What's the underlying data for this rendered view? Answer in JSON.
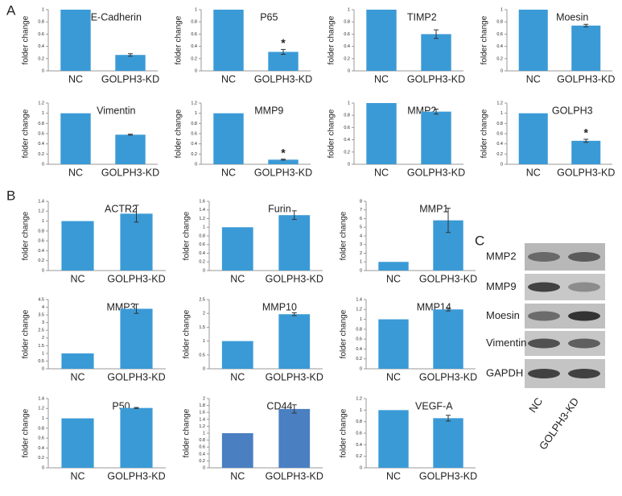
{
  "panel_labels": [
    "A",
    "B",
    "C"
  ],
  "chart_data": [
    {
      "type": "bar",
      "title": "E-Cadherin",
      "ylabel": "folder change",
      "categories": [
        "NC",
        "GOLPH3-KD"
      ],
      "values": [
        1,
        0.26
      ],
      "errors": [
        null,
        0.02
      ],
      "annotations": [
        null,
        null
      ],
      "color": "#3a9ad6",
      "ylim": [
        0,
        1
      ],
      "yticks": [
        0,
        0.2,
        0.4,
        0.6,
        0.8,
        1
      ]
    },
    {
      "type": "bar",
      "title": "P65",
      "ylabel": "folder change",
      "categories": [
        "NC",
        "GOLPH3-KD"
      ],
      "values": [
        1,
        0.31
      ],
      "errors": [
        null,
        0.04
      ],
      "annotations": [
        null,
        "*"
      ],
      "color": "#3a9ad6",
      "ylim": [
        0,
        1
      ],
      "yticks": [
        0,
        0.2,
        0.4,
        0.6,
        0.8,
        1
      ]
    },
    {
      "type": "bar",
      "title": "TIMP2",
      "ylabel": "folder change",
      "categories": [
        "NC",
        "GOLPH3-KD"
      ],
      "values": [
        1,
        0.6
      ],
      "errors": [
        null,
        0.07
      ],
      "annotations": [
        null,
        null
      ],
      "color": "#3a9ad6",
      "ylim": [
        0,
        1
      ],
      "yticks": [
        0,
        0.2,
        0.4,
        0.6,
        0.8,
        1
      ]
    },
    {
      "type": "bar",
      "title": "Moesin",
      "ylabel": "folder change",
      "categories": [
        "NC",
        "GOLPH3-KD"
      ],
      "values": [
        1,
        0.74
      ],
      "errors": [
        null,
        0.02
      ],
      "annotations": [
        null,
        null
      ],
      "color": "#3a9ad6",
      "ylim": [
        0,
        1
      ],
      "yticks": [
        0,
        0.2,
        0.4,
        0.6,
        0.8,
        1
      ]
    },
    {
      "type": "bar",
      "title": "Vimentin",
      "ylabel": "folder change",
      "categories": [
        "NC",
        "GOLPH3-KD"
      ],
      "values": [
        1,
        0.58
      ],
      "errors": [
        null,
        0.01
      ],
      "annotations": [
        null,
        null
      ],
      "color": "#3a9ad6",
      "ylim": [
        0,
        1.2
      ],
      "yticks": [
        0,
        0.2,
        0.4,
        0.6,
        0.8,
        1,
        1.2
      ]
    },
    {
      "type": "bar",
      "title": "MMP9",
      "ylabel": "folder change",
      "categories": [
        "NC",
        "GOLPH3-KD"
      ],
      "values": [
        1,
        0.09
      ],
      "errors": [
        null,
        0.01
      ],
      "annotations": [
        null,
        "*"
      ],
      "color": "#3a9ad6",
      "ylim": [
        0,
        1.2
      ],
      "yticks": [
        0,
        0.2,
        0.4,
        0.6,
        0.8,
        1,
        1.2
      ]
    },
    {
      "type": "bar",
      "title": "MMP2",
      "ylabel": "folder change",
      "categories": [
        "NC",
        "GOLPH3-KD"
      ],
      "values": [
        1,
        0.86
      ],
      "errors": [
        null,
        0.04
      ],
      "annotations": [
        null,
        null
      ],
      "color": "#3a9ad6",
      "ylim": [
        0,
        1
      ],
      "yticks": [
        0,
        0.2,
        0.4,
        0.6,
        0.8,
        1
      ]
    },
    {
      "type": "bar",
      "title": "GOLPH3",
      "ylabel": "folder change",
      "categories": [
        "NC",
        "GOLPH3-KD"
      ],
      "values": [
        1,
        0.46
      ],
      "errors": [
        null,
        0.03
      ],
      "annotations": [
        null,
        "*"
      ],
      "color": "#3a9ad6",
      "ylim": [
        0,
        1.2
      ],
      "yticks": [
        0,
        0.2,
        0.4,
        0.6,
        0.8,
        1,
        1.2
      ]
    },
    {
      "type": "bar",
      "title": "ACTR2",
      "ylabel": "folder change",
      "categories": [
        "NC",
        "GOLPH3-KD"
      ],
      "values": [
        1,
        1.15
      ],
      "errors": [
        null,
        0.17
      ],
      "annotations": [
        null,
        null
      ],
      "color": "#3a9ad6",
      "ylim": [
        0,
        1.4
      ],
      "yticks": [
        0,
        0.2,
        0.4,
        0.6,
        0.8,
        1,
        1.2,
        1.4
      ]
    },
    {
      "type": "bar",
      "title": "Furin",
      "ylabel": "folder change",
      "categories": [
        "NC",
        "GOLPH3-KD"
      ],
      "values": [
        1,
        1.28
      ],
      "errors": [
        null,
        0.1
      ],
      "annotations": [
        null,
        null
      ],
      "color": "#3a9ad6",
      "ylim": [
        0,
        1.6
      ],
      "yticks": [
        0,
        0.2,
        0.4,
        0.6,
        0.8,
        1,
        1.2,
        1.4,
        1.6
      ]
    },
    {
      "type": "bar",
      "title": "MMP1",
      "ylabel": "folder change",
      "categories": [
        "NC",
        "GOLPH3-KD"
      ],
      "values": [
        1,
        5.8
      ],
      "errors": [
        null,
        1.4
      ],
      "annotations": [
        null,
        null
      ],
      "color": "#3a9ad6",
      "ylim": [
        0,
        8
      ],
      "yticks": [
        0,
        1,
        2,
        3,
        4,
        5,
        6,
        7,
        8
      ]
    },
    {
      "type": "bar",
      "title": "MMP3",
      "ylabel": "folder change",
      "categories": [
        "NC",
        "GOLPH3-KD"
      ],
      "values": [
        1,
        3.9
      ],
      "errors": [
        null,
        0.3
      ],
      "annotations": [
        null,
        null
      ],
      "color": "#3a9ad6",
      "ylim": [
        0,
        4.5
      ],
      "yticks": [
        0,
        0.5,
        1,
        1.5,
        2,
        2.5,
        3,
        3.5,
        4,
        4.5
      ]
    },
    {
      "type": "bar",
      "title": "MMP10",
      "ylabel": "folder change",
      "categories": [
        "NC",
        "GOLPH3-KD"
      ],
      "values": [
        1,
        1.97
      ],
      "errors": [
        null,
        0.05
      ],
      "annotations": [
        null,
        null
      ],
      "color": "#3a9ad6",
      "ylim": [
        0,
        2.5
      ],
      "yticks": [
        0,
        0.5,
        1,
        1.5,
        2,
        2.5
      ]
    },
    {
      "type": "bar",
      "title": "MMP14",
      "ylabel": "folder change",
      "categories": [
        "NC",
        "GOLPH3-KD"
      ],
      "values": [
        1,
        1.2
      ],
      "errors": [
        null,
        0.03
      ],
      "annotations": [
        null,
        null
      ],
      "color": "#3a9ad6",
      "ylim": [
        0,
        1.4
      ],
      "yticks": [
        0,
        0.2,
        0.4,
        0.6,
        0.8,
        1,
        1.2,
        1.4
      ]
    },
    {
      "type": "bar",
      "title": "P50",
      "ylabel": "folder change",
      "categories": [
        "NC",
        "GOLPH3-KD"
      ],
      "values": [
        1,
        1.21
      ],
      "errors": [
        null,
        0.01
      ],
      "annotations": [
        null,
        null
      ],
      "color": "#3a9ad6",
      "ylim": [
        0,
        1.4
      ],
      "yticks": [
        0,
        0.2,
        0.4,
        0.6,
        0.8,
        1,
        1.2,
        1.4
      ]
    },
    {
      "type": "bar",
      "title": "CD44",
      "ylabel": "folder change",
      "categories": [
        "NC",
        "GOLPH3-KD"
      ],
      "values": [
        1,
        1.7
      ],
      "errors": [
        null,
        0.12
      ],
      "annotations": [
        null,
        null
      ],
      "color": "#4a7fc1",
      "ylim": [
        0,
        2
      ],
      "yticks": [
        0,
        0.2,
        0.4,
        0.6,
        0.8,
        1,
        1.2,
        1.4,
        1.6,
        1.8,
        2
      ]
    },
    {
      "type": "bar",
      "title": "VEGF-A",
      "ylabel": "folder change",
      "categories": [
        "NC",
        "GOLPH3-KD"
      ],
      "values": [
        1,
        0.86
      ],
      "errors": [
        null,
        0.05
      ],
      "annotations": [
        null,
        null
      ],
      "color": "#3a9ad6",
      "ylim": [
        0,
        1.2
      ],
      "yticks": [
        0,
        0.2,
        0.4,
        0.6,
        0.8,
        1,
        1.2
      ]
    }
  ],
  "blot": {
    "labels": [
      "MMP2",
      "MMP9",
      "Moesin",
      "Vimentin",
      "GAPDH"
    ],
    "lanes": [
      "NC",
      "GOLPH3-KD"
    ]
  }
}
